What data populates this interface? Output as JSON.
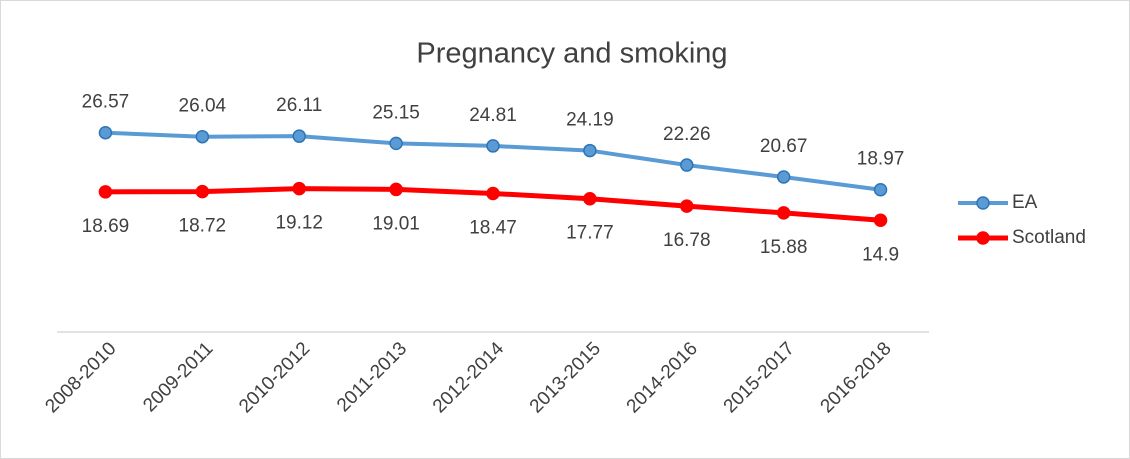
{
  "chart_data": {
    "type": "line",
    "title": "Pregnancy and smoking",
    "categories": [
      "2008-2010",
      "2009-2011",
      "2010-2012",
      "2011-2013",
      "2012-2014",
      "2013-2015",
      "2014-2016",
      "2015-2017",
      "2016-2018"
    ],
    "series": [
      {
        "name": "EA",
        "color": "#5b9bd5",
        "values": [
          26.57,
          26.04,
          26.11,
          25.15,
          24.81,
          24.19,
          22.26,
          20.67,
          18.97
        ]
      },
      {
        "name": "Scotland",
        "color": "#ff0000",
        "values": [
          18.69,
          18.72,
          19.12,
          19.01,
          18.47,
          17.77,
          16.78,
          15.88,
          14.9
        ]
      }
    ],
    "ylim": [
      0,
      30
    ],
    "legend": "right"
  }
}
